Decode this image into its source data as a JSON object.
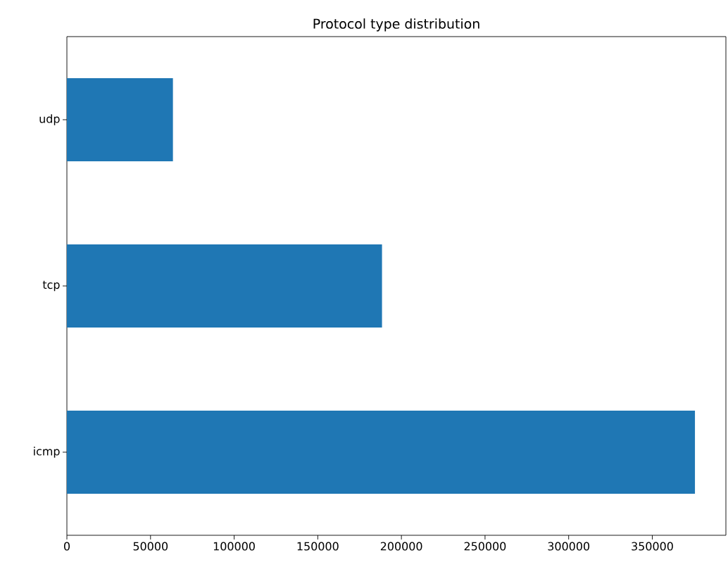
{
  "chart_data": {
    "type": "bar",
    "orientation": "horizontal",
    "title": "Protocol type distribution",
    "categories": [
      "udp",
      "tcp",
      "icmp"
    ],
    "values": [
      63400,
      188400,
      375500
    ],
    "color": "#1f77b4",
    "xlim": [
      0,
      394000
    ],
    "xticks": [
      0,
      50000,
      100000,
      150000,
      200000,
      250000,
      300000,
      350000
    ],
    "grid": false
  }
}
